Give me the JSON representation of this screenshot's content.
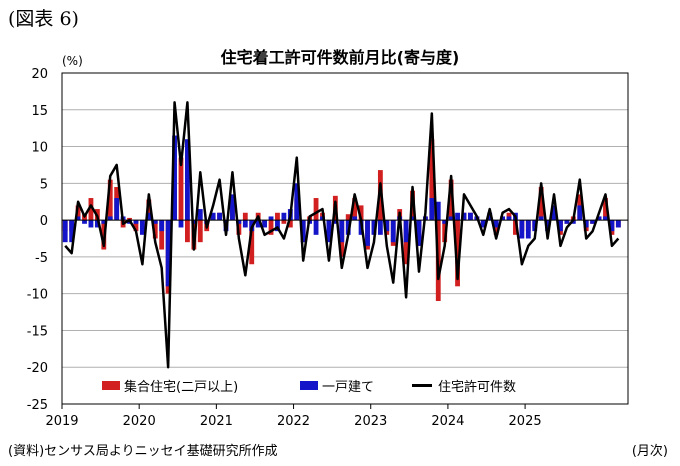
{
  "figure_label": "(図表 6)",
  "source_note": "(資料)センサス局よりニッセイ基礎研究所作成",
  "x_unit": "(月次)",
  "colors": {
    "multi": "#d21f1f",
    "single": "#1414c8",
    "total": "#000000",
    "grid": "#b0b0b0"
  },
  "chart_data": {
    "type": "bar",
    "title": "住宅着工許可件数前月比(寄与度)",
    "ylabel": "(%)",
    "xlabel": "",
    "ylim": [
      -25,
      20
    ],
    "yticks": [
      20,
      15,
      10,
      5,
      0,
      -5,
      -10,
      -15,
      -20,
      -25
    ],
    "grid": true,
    "legend_position": "bottom-left",
    "year_labels": [
      "2019",
      "2020",
      "2021",
      "2022",
      "2023",
      "2024",
      "2025"
    ],
    "start": "2019-01",
    "series": [
      {
        "name": "集合住宅(二戸以上)",
        "kind": "bar",
        "values": [
          -1.5,
          -1.5,
          2.0,
          0.8,
          3.0,
          1.5,
          -4.0,
          5.5,
          4.5,
          -1.0,
          0.3,
          -1.5,
          -1.8,
          2.8,
          -2.5,
          -4.0,
          -10.0,
          4.5,
          8.5,
          -3.0,
          -4.0,
          -3.0,
          -1.5,
          0.5,
          1.0,
          -0.5,
          3.0,
          -2.0,
          1.0,
          -6.0,
          1.0,
          -0.5,
          -2.0,
          1.0,
          -0.5,
          -1.0,
          3.0,
          -3.0,
          0.5,
          3.0,
          1.0,
          -2.5,
          3.3,
          -5.0,
          0.8,
          3.0,
          2.0,
          -4.0,
          -1.0,
          6.8,
          -2.0,
          -3.5,
          1.5,
          -6.0,
          4.0,
          -3.5,
          0.5,
          11.0,
          -11.0,
          -3.0,
          5.5,
          -9.0,
          1.0,
          1.0,
          0.5,
          -1.0,
          0.5,
          -2.0,
          0.5,
          1.0,
          -2.0,
          -1.5,
          -1.5,
          -1.0,
          4.5,
          -1.0,
          1.5,
          -2.0,
          -0.5,
          0.5,
          3.5,
          -1.5,
          -0.5,
          0.5,
          3.0,
          -2.0,
          -1.0
        ]
      },
      {
        "name": "一戸建て",
        "kind": "bar",
        "values": [
          -3.0,
          -3.0,
          0.5,
          -0.5,
          -1.0,
          -1.0,
          -0.5,
          0.5,
          3.0,
          0.5,
          -0.5,
          -0.5,
          -2.0,
          1.0,
          -0.5,
          -1.5,
          -9.0,
          11.5,
          -1.0,
          11.0,
          -0.5,
          1.5,
          -0.5,
          1.0,
          1.0,
          -1.5,
          3.5,
          -0.5,
          -1.0,
          -1.5,
          -1.0,
          -1.0,
          0.5,
          -1.5,
          1.0,
          1.5,
          5.0,
          -3.0,
          -0.5,
          -2.0,
          0.5,
          -3.0,
          -0.5,
          -3.0,
          -2.0,
          0.5,
          -2.0,
          -3.5,
          -2.0,
          -2.0,
          -1.5,
          -3.0,
          0.5,
          -3.0,
          0.5,
          -3.5,
          0.5,
          3.0,
          2.5,
          -0.5,
          0.5,
          1.0,
          1.0,
          1.0,
          0.5,
          -1.0,
          1.0,
          -1.0,
          0.5,
          0.5,
          1.0,
          -2.5,
          -2.5,
          -1.5,
          0.5,
          -1.5,
          2.0,
          -1.5,
          -0.5,
          -0.5,
          2.0,
          -1.0,
          -0.5,
          0.5,
          0.5,
          -1.5,
          -1.0
        ]
      },
      {
        "name": "住宅許可件数",
        "kind": "line",
        "values": [
          -3.5,
          -4.5,
          2.5,
          0.5,
          2.0,
          0.5,
          -3.5,
          6.0,
          7.5,
          -0.5,
          0.0,
          -1.5,
          -6.0,
          3.5,
          -3.0,
          -6.5,
          -20.0,
          16.0,
          7.5,
          16.0,
          -4.0,
          6.5,
          -1.0,
          2.0,
          5.5,
          -2.0,
          6.5,
          -2.5,
          -7.5,
          -1.0,
          0.5,
          -2.0,
          -1.5,
          -1.0,
          -2.5,
          0.5,
          8.5,
          -5.5,
          0.5,
          1.0,
          1.5,
          -5.5,
          2.5,
          -6.5,
          -2.0,
          3.5,
          0.0,
          -6.5,
          -3.0,
          5.0,
          -3.5,
          -8.5,
          1.0,
          -10.5,
          4.5,
          -7.0,
          1.0,
          14.5,
          -8.0,
          -3.5,
          6.0,
          -8.0,
          3.5,
          2.0,
          0.5,
          -2.0,
          1.5,
          -2.5,
          1.0,
          1.5,
          0.5,
          -6.0,
          -3.5,
          -2.5,
          5.0,
          -2.5,
          3.5,
          -3.5,
          -1.0,
          0.0,
          5.5,
          -2.5,
          -1.5,
          1.0,
          3.5,
          -3.5,
          -2.5
        ]
      }
    ]
  }
}
